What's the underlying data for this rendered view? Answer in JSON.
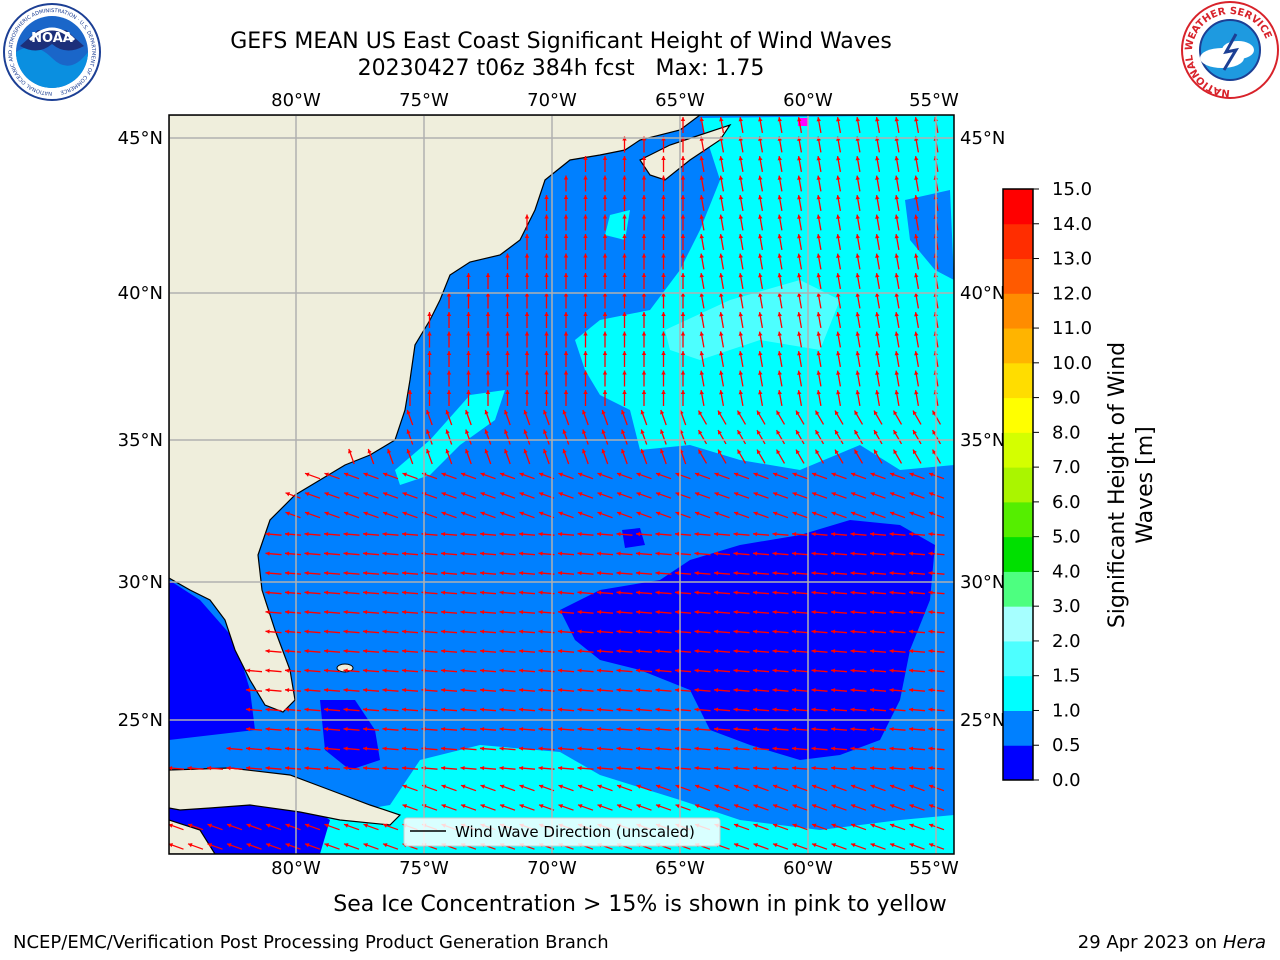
{
  "title": {
    "line1": "GEFS MEAN US East Coast Significant Height of Wind Waves",
    "line2": "20230427 t06z 384h fcst   Max: 1.75"
  },
  "map": {
    "lon_labels": [
      "80°W",
      "75°W",
      "70°W",
      "65°W",
      "60°W",
      "55°W"
    ],
    "lat_labels": [
      "45°N",
      "40°N",
      "35°N",
      "30°N",
      "25°N"
    ],
    "legend_label": "Wind Wave Direction (unscaled)",
    "colors": {
      "land": "#efeedc",
      "lightest": "#00ffff",
      "mid": "#0080ff",
      "low": "#0000ff",
      "arrows": "#ff0000"
    }
  },
  "colorbar": {
    "label_line1": "Significant Height of Wind",
    "label_line2": "Waves [m]",
    "ticks": [
      "0.0",
      "0.5",
      "1.0",
      "1.5",
      "2.0",
      "3.0",
      "4.0",
      "5.0",
      "6.0",
      "7.0",
      "8.0",
      "9.0",
      "10.0",
      "11.0",
      "12.0",
      "13.0",
      "14.0",
      "15.0"
    ],
    "colors": [
      "#0000ff",
      "#0080ff",
      "#00ffff",
      "#4dffff",
      "#a6ffff",
      "#4dff80",
      "#00e000",
      "#55ee00",
      "#aaf500",
      "#d4ff00",
      "#ffff00",
      "#ffdd00",
      "#ffb400",
      "#ff8c00",
      "#ff5a00",
      "#ff2d00",
      "#ff0000"
    ]
  },
  "note": "Sea Ice Concentration > 15% is shown in pink to yellow",
  "footer": {
    "left": "NCEP/EMC/Verification Post Processing Product Generation Branch",
    "right_prefix": "29 Apr 2023 on ",
    "right_italic": "Hera"
  },
  "logos": {
    "noaa_text": "NOAA",
    "noaa_ring": "NATIONAL OCEANIC AND ATMOSPHERIC ADMINISTRATION · U.S. DEPARTMENT OF COMMERCE",
    "nws_ring": "NATIONAL WEATHER SERVICE"
  }
}
